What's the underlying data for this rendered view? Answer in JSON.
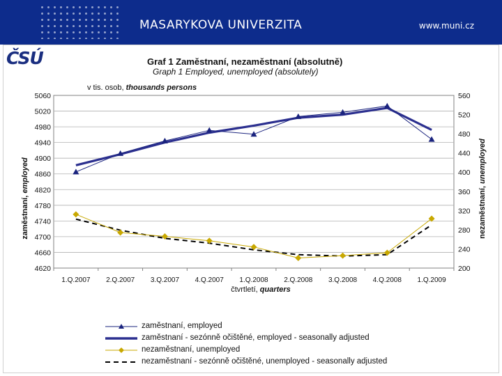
{
  "header": {
    "brand": "MASARYKOVA UNIVERZITA",
    "url": "www.muni.cz",
    "bg_color": "#0d2c8c"
  },
  "logo": {
    "text": "ČSÚ"
  },
  "chart_data": {
    "type": "line",
    "title": "Graf 1  Zaměstnaní, nezaměstnaní (absolutně)",
    "subtitle": "Graph 1   Employed, unemployed (absolutely)",
    "unit_label": "v tis. osob, ",
    "unit_label_en": "thousands persons",
    "xlabel": "čtvrtletí, ",
    "xlabel_en": "quarters",
    "ylabel_left": "zaměstnaní, ",
    "ylabel_left_en": "employed",
    "ylabel_right": "nezaměstnaní, ",
    "ylabel_right_en": "unemployed",
    "categories": [
      "1.Q.2007",
      "2.Q.2007",
      "3.Q.2007",
      "4.Q.2007",
      "1.Q.2008",
      "2.Q.2008",
      "3.Q.2008",
      "4.Q.2008",
      "1.Q.2009"
    ],
    "ylim_left": [
      4620,
      5060
    ],
    "yticks_left": [
      4620,
      4660,
      4700,
      4740,
      4780,
      4820,
      4860,
      4900,
      4940,
      4980,
      5020,
      5060
    ],
    "ylim_right": [
      200,
      560
    ],
    "yticks_right": [
      200,
      240,
      280,
      320,
      360,
      400,
      440,
      480,
      520,
      560
    ],
    "grid": true,
    "legend_position": "bottom",
    "series": [
      {
        "name": "zaměstnaní, employed",
        "axis": "left",
        "color": "#1a237e",
        "style": "triangle-line",
        "values": [
          4865,
          4912,
          4944,
          4971,
          4961,
          5006,
          5017,
          5033,
          4948
        ]
      },
      {
        "name": "zaměstnaní - sezónně očištěné, employed - seasonally adjusted",
        "axis": "left",
        "color": "#2b2f8f",
        "style": "thick",
        "values": [
          4882,
          4910,
          4940,
          4965,
          4983,
          5003,
          5011,
          5028,
          4972
        ]
      },
      {
        "name": "nezaměstnaní,  unemployed",
        "axis": "right",
        "color": "#c8a800",
        "style": "diamond-line",
        "values": [
          312,
          274,
          266,
          257,
          244,
          221,
          226,
          232,
          303
        ]
      },
      {
        "name": "nezaměstnaní - sezónně očištěné,  unemployed - seasonally adjusted",
        "axis": "right",
        "color": "#000000",
        "style": "dashed",
        "values": [
          302,
          279,
          262,
          252,
          238,
          228,
          225,
          228,
          290
        ]
      }
    ]
  }
}
